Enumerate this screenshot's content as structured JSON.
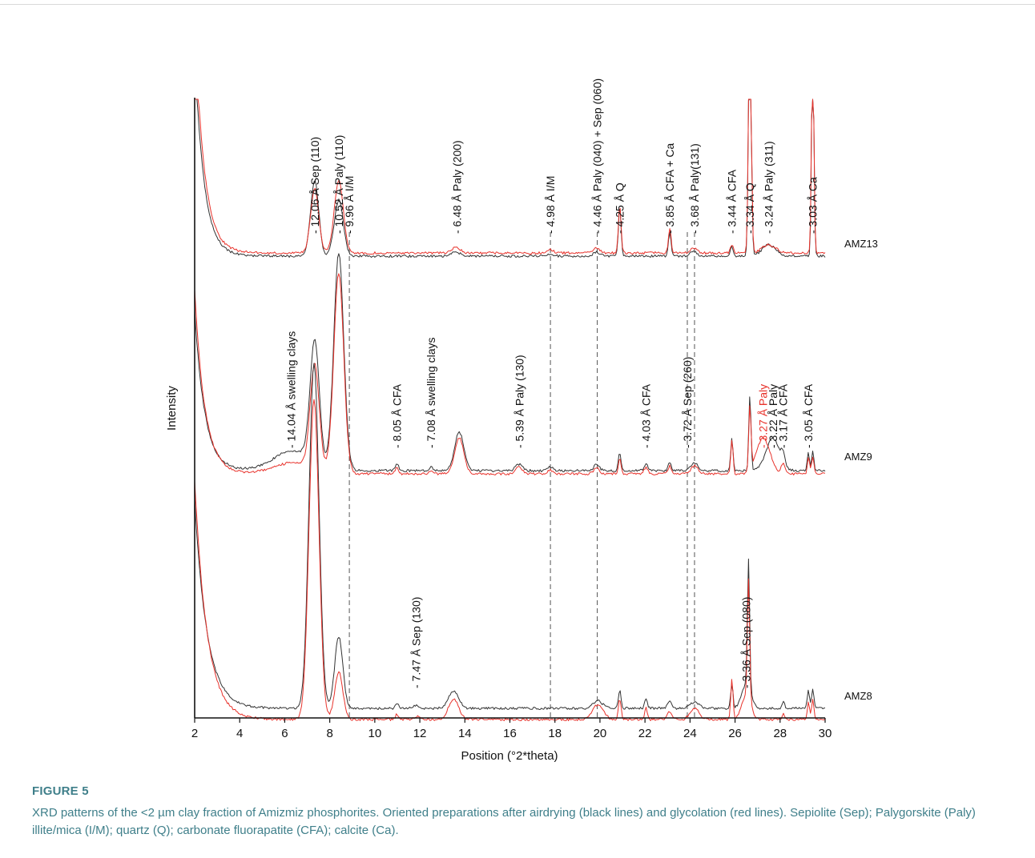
{
  "figure": {
    "label": "FIGURE 5",
    "caption": "XRD patterns of the <2 µm clay fraction of Amizmiz phosphorites. Oriented preparations after airdrying (black lines) and glycolation (red lines). Sepiolite (Sep); Palygorskite (Paly) illite/mica (I/M); quartz (Q); carbonate fluorapatite (CFA); calcite (Ca)."
  },
  "chart_data": {
    "type": "line",
    "xlabel": "Position (°2*theta)",
    "ylabel": "Intensity",
    "xlim": [
      2,
      30
    ],
    "xticks": [
      2,
      4,
      6,
      8,
      10,
      12,
      14,
      16,
      18,
      20,
      22,
      24,
      26,
      28,
      30
    ],
    "grid": false,
    "colors": {
      "airdried": "#333333",
      "glycolated": "#e8322b",
      "highlight": "#e8322b"
    },
    "samples": [
      "AMZ13",
      "AMZ9",
      "AMZ8"
    ],
    "dashed_reference_lines": [
      8.87,
      17.8,
      19.88,
      23.88,
      24.2
    ],
    "annotations": [
      {
        "text": "- 12.06 Å Sep (110)",
        "x": 7.33,
        "sample": "AMZ13",
        "color": "#111111"
      },
      {
        "text": "- 10.52 Å Paly (110)",
        "x": 8.4,
        "sample": "AMZ13",
        "color": "#111111"
      },
      {
        "text": "- 9.96 Å I/M",
        "x": 8.87,
        "sample": "AMZ13",
        "color": "#111111"
      },
      {
        "text": "- 6.48 Å Paly (200)",
        "x": 13.65,
        "sample": "AMZ13",
        "color": "#111111"
      },
      {
        "text": "- 4.98 Å I/M",
        "x": 17.8,
        "sample": "AMZ13",
        "color": "#111111"
      },
      {
        "text": "- 4.46 Å Paly (040) + Sep (060)",
        "x": 19.88,
        "sample": "AMZ13",
        "color": "#111111"
      },
      {
        "text": "- 4.25 Å Q",
        "x": 20.88,
        "sample": "AMZ13",
        "color": "#111111"
      },
      {
        "text": "- 3.85 Å CFA + Ca",
        "x": 23.1,
        "sample": "AMZ13",
        "color": "#111111"
      },
      {
        "text": "- 3.68 Å Paly(131)",
        "x": 24.2,
        "sample": "AMZ13",
        "color": "#111111"
      },
      {
        "text": "- 3.44 Å CFA",
        "x": 25.86,
        "sample": "AMZ13",
        "color": "#111111"
      },
      {
        "text": "- 3.34 Å Q",
        "x": 26.66,
        "sample": "AMZ13",
        "color": "#111111"
      },
      {
        "text": "- 3.24 Å Paly (311)",
        "x": 27.5,
        "sample": "AMZ13",
        "color": "#111111"
      },
      {
        "text": "- 3.03 Å Ca",
        "x": 29.45,
        "sample": "AMZ13",
        "color": "#111111"
      },
      {
        "text": "- 14.04 Å swelling clays",
        "x": 6.29,
        "sample": "AMZ9",
        "color": "#111111"
      },
      {
        "text": "- 8.05 Å CFA",
        "x": 10.98,
        "sample": "AMZ9",
        "color": "#111111"
      },
      {
        "text": "- 7.08 Å swelling clays",
        "x": 12.49,
        "sample": "AMZ9",
        "color": "#111111"
      },
      {
        "text": "- 5.39 Å Paly (130)",
        "x": 16.43,
        "sample": "AMZ9",
        "color": "#111111"
      },
      {
        "text": "- 4.03 Å CFA",
        "x": 22.04,
        "sample": "AMZ9",
        "color": "#111111"
      },
      {
        "text": "- 3.72 Å Sep (260)",
        "x": 23.88,
        "sample": "AMZ9",
        "color": "#111111"
      },
      {
        "text": "- 3.27 Å Paly",
        "x": 27.25,
        "sample": "AMZ9",
        "color": "#e8322b"
      },
      {
        "text": "- 3.22 Å Paly",
        "x": 27.68,
        "sample": "AMZ9",
        "color": "#111111"
      },
      {
        "text": "- 3.17 Å CFA",
        "x": 28.13,
        "sample": "AMZ9",
        "color": "#111111"
      },
      {
        "text": "- 3.05 Å CFA",
        "x": 29.26,
        "sample": "AMZ9",
        "color": "#111111"
      },
      {
        "text": "- 7.47 Å Sep (130)",
        "x": 11.83,
        "sample": "AMZ8",
        "color": "#111111"
      },
      {
        "text": "- 3.36 Å Sep (080)",
        "x": 26.5,
        "sample": "AMZ8",
        "color": "#111111"
      }
    ]
  }
}
